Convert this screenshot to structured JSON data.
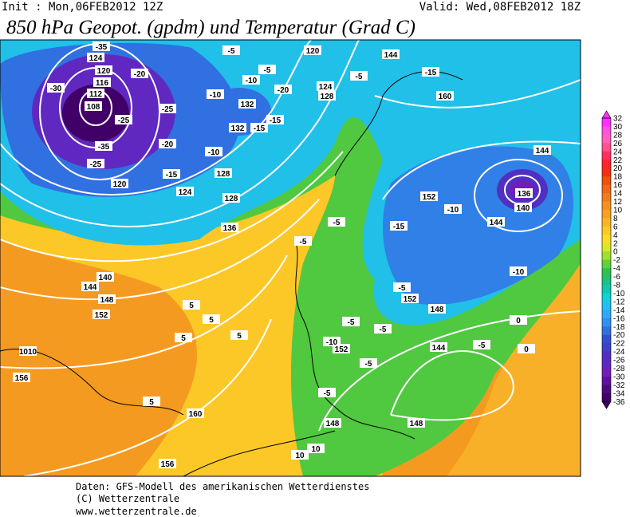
{
  "header": {
    "init": "Init : Mon,06FEB2012 12Z",
    "valid": "Valid: Wed,08FEB2012 18Z",
    "title": "850 hPa Geopot. (gpdm) und Temperatur (Grad C)"
  },
  "colorbar": {
    "levels": [
      32,
      30,
      28,
      26,
      24,
      22,
      20,
      18,
      16,
      14,
      12,
      10,
      8,
      6,
      4,
      2,
      0,
      -2,
      -4,
      -6,
      -8,
      -10,
      -12,
      -14,
      -16,
      -18,
      -20,
      -22,
      -24,
      -26,
      -28,
      -30,
      -32,
      -34,
      -36
    ],
    "colors": [
      "#ff30ff",
      "#ff50e0",
      "#ff60c0",
      "#ff5090",
      "#ff3060",
      "#ff2030",
      "#f03010",
      "#f05010",
      "#f06818",
      "#f07c1c",
      "#f59020",
      "#f8a020",
      "#fbb428",
      "#fdc828",
      "#f8dc28",
      "#d8e828",
      "#a0e030",
      "#60d040",
      "#30c050",
      "#20c080",
      "#10c8b0",
      "#10d0d8",
      "#20c0f0",
      "#30a8f8",
      "#3090f0",
      "#3070e0",
      "#3050d0",
      "#4040c8",
      "#5030c0",
      "#6028c0",
      "#7020b8",
      "#6010a0",
      "#500880",
      "#400068"
    ]
  },
  "map": {
    "contour_labels": [
      124,
      120,
      116,
      112,
      108,
      120,
      124,
      128,
      132,
      132,
      136,
      128,
      120,
      128,
      124,
      144,
      160,
      144,
      136,
      140,
      144,
      152,
      140,
      144,
      148,
      152,
      152,
      148,
      152,
      144,
      148,
      148,
      156,
      160,
      156,
      1010,
      -35,
      -30,
      -25,
      -35,
      -25,
      -20,
      -25,
      -20,
      -15,
      -10,
      -15,
      -10,
      -5,
      -15,
      -5,
      -20,
      -10,
      -15,
      -5,
      -5,
      -10,
      -15,
      -10,
      -5,
      -5,
      -5,
      -5,
      0,
      0,
      -5,
      -10,
      -5,
      -5,
      5,
      5,
      5,
      5,
      5,
      10,
      10
    ]
  },
  "footer": {
    "line1": "Daten: GFS-Modell des amerikanischen Wetterdienstes",
    "line2": "(C) Wetterzentrale",
    "line3": "www.wetterzentrale.de"
  }
}
